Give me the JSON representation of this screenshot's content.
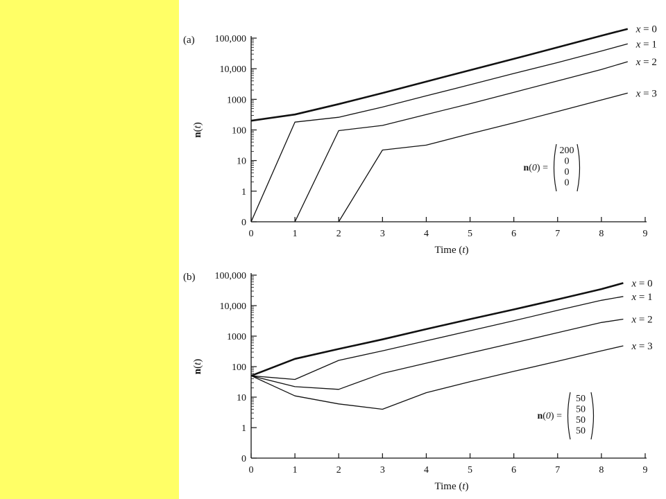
{
  "colors": {
    "sidebar": "#ffff66",
    "background": "#ffffff",
    "ink": "#111111"
  },
  "chart_data": [
    {
      "type": "line",
      "panel_label": "(a)",
      "xlabel": "Time (t)",
      "ylabel": "n(t)",
      "xlim": [
        0,
        9
      ],
      "x_ticks": [
        0,
        1,
        2,
        3,
        4,
        5,
        6,
        7,
        8,
        9
      ],
      "y_scale": "log",
      "y_ticks": [
        "0",
        "1",
        "10",
        "100",
        "1000",
        "10,000",
        "100,000"
      ],
      "series": [
        {
          "name": "x = 0",
          "x": [
            0,
            1,
            2,
            3,
            4,
            5,
            6,
            7,
            8,
            8.6
          ],
          "y": [
            200,
            320,
            700,
            1600,
            3800,
            9000,
            21000,
            50000,
            120000,
            200000
          ]
        },
        {
          "name": "x = 1",
          "x": [
            0,
            1,
            2,
            3,
            4,
            5,
            6,
            7,
            8,
            8.6
          ],
          "y": [
            0,
            180,
            260,
            560,
            1300,
            3000,
            7000,
            16000,
            38000,
            65000
          ]
        },
        {
          "name": "x = 2",
          "x": [
            1,
            2,
            3,
            4,
            5,
            6,
            7,
            8,
            8.6
          ],
          "y": [
            0,
            95,
            140,
            320,
            720,
            1700,
            4000,
            9500,
            17000
          ]
        },
        {
          "name": "x = 3",
          "x": [
            2,
            3,
            4,
            5,
            6,
            7,
            8,
            8.6
          ],
          "y": [
            0,
            22,
            32,
            75,
            170,
            400,
            950,
            1600
          ]
        }
      ],
      "annotation": {
        "label": "n(0) =",
        "vector": [
          "200",
          "0",
          "0",
          "0"
        ]
      }
    },
    {
      "type": "line",
      "panel_label": "(b)",
      "xlabel": "Time (t)",
      "ylabel": "n(t)",
      "xlim": [
        0,
        9
      ],
      "x_ticks": [
        0,
        1,
        2,
        3,
        4,
        5,
        6,
        7,
        8,
        9
      ],
      "y_scale": "log",
      "y_ticks": [
        "0",
        "1",
        "10",
        "100",
        "1000",
        "10,000",
        "100,000"
      ],
      "series": [
        {
          "name": "x = 0",
          "x": [
            0,
            1,
            2,
            3,
            4,
            5,
            6,
            7,
            8,
            8.5
          ],
          "y": [
            50,
            180,
            380,
            780,
            1700,
            3600,
            7500,
            16000,
            35000,
            55000
          ]
        },
        {
          "name": "x = 1",
          "x": [
            0,
            1,
            2,
            3,
            4,
            5,
            6,
            7,
            8,
            8.5
          ],
          "y": [
            50,
            38,
            160,
            330,
            700,
            1500,
            3200,
            7000,
            15000,
            20000
          ]
        },
        {
          "name": "x = 2",
          "x": [
            0,
            1,
            2,
            3,
            4,
            5,
            6,
            7,
            8,
            8.5
          ],
          "y": [
            50,
            22,
            18,
            60,
            130,
            280,
            600,
            1300,
            2800,
            3600
          ]
        },
        {
          "name": "x = 3",
          "x": [
            0,
            1,
            2,
            3,
            4,
            5,
            6,
            7,
            8,
            8.5
          ],
          "y": [
            50,
            11,
            6,
            4,
            14,
            32,
            70,
            150,
            330,
            480
          ]
        }
      ],
      "annotation": {
        "label": "n(0) =",
        "vector": [
          "50",
          "50",
          "50",
          "50"
        ]
      }
    }
  ]
}
